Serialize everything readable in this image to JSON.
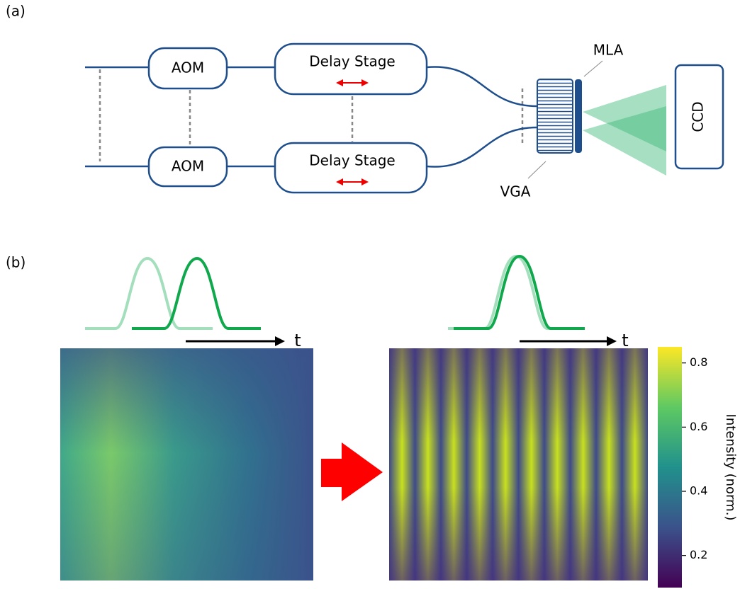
{
  "panel_a": {
    "label": "(a)",
    "aom_top": "AOM",
    "aom_bottom": "AOM",
    "delay_top": "Delay Stage",
    "delay_bottom": "Delay Stage",
    "mla": "MLA",
    "vga": "VGA",
    "ccd": "CCD"
  },
  "panel_b": {
    "label": "(b)",
    "time_left": "t",
    "time_right": "t",
    "colorbar": {
      "label": "Intensity (norm.)",
      "lim": [
        0.1,
        0.85
      ],
      "ticks": [
        0.2,
        0.4,
        0.6,
        0.8
      ]
    }
  }
}
